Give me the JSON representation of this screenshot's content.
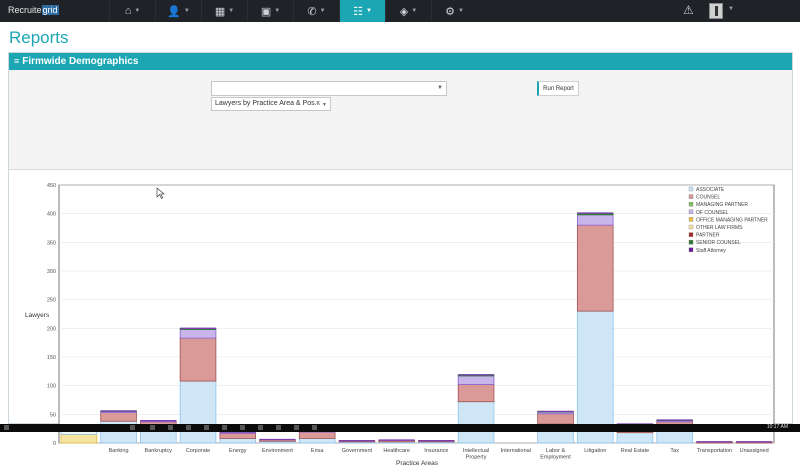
{
  "app": {
    "brand_prefix": "Recruite",
    "brand_highlight": "grid"
  },
  "nav": {
    "items": [
      {
        "name": "home-nav",
        "icon": "⌂"
      },
      {
        "name": "people-nav",
        "icon": "👤"
      },
      {
        "name": "buildings-nav",
        "icon": "▦"
      },
      {
        "name": "briefcase-nav",
        "icon": "▣"
      },
      {
        "name": "phone-nav",
        "icon": "✆"
      },
      {
        "name": "reports-nav",
        "icon": "☷"
      },
      {
        "name": "tags-nav",
        "icon": "◈"
      },
      {
        "name": "settings-nav",
        "icon": "⚙"
      }
    ],
    "active_index": 5
  },
  "page": {
    "title": "Reports"
  },
  "panel": {
    "title": "Firmwide Demographics"
  },
  "filters": {
    "select1_value": "",
    "select2_value": "Lawyers by Practice Area & Pos...",
    "clear_glyph": "×",
    "run_label": "Run Report"
  },
  "taskbar": {
    "clock": "10:17 AM"
  },
  "colors": {
    "accent": "#1ca6b4",
    "navbar": "#1f2226"
  },
  "chart_data": {
    "type": "bar",
    "stacked": true,
    "title": "",
    "xlabel": "Practice Areas",
    "ylabel": "Lawyers",
    "ylim": [
      0,
      450
    ],
    "yticks": [
      0,
      50,
      100,
      150,
      200,
      250,
      300,
      350,
      400,
      450
    ],
    "grid": true,
    "legend_position": "top-right",
    "categories": [
      "",
      "Banking",
      "Bankruptcy",
      "Corporate",
      "Energy",
      "Environment",
      "Erisa",
      "Government",
      "Healthcare",
      "Insurance",
      "Intellectual Property",
      "International",
      "Labor & Employment",
      "Litigation",
      "Real Estate",
      "Tax",
      "Transportation",
      "Unassigned"
    ],
    "series": [
      {
        "name": "ASSOCIATE",
        "color": "#cfe6f7",
        "values": [
          0,
          38,
          25,
          108,
          8,
          3,
          8,
          2,
          2,
          2,
          72,
          0,
          33,
          230,
          18,
          20,
          0,
          0
        ]
      },
      {
        "name": "COUNSEL",
        "color": "#d99a98",
        "values": [
          0,
          15,
          12,
          75,
          9,
          3,
          11,
          2,
          3,
          2,
          30,
          0,
          18,
          150,
          12,
          17,
          2,
          2
        ]
      },
      {
        "name": "MANAGING PARTNER",
        "color": "#7fbf5f",
        "values": [
          0,
          0,
          0,
          0,
          0,
          0,
          0,
          0,
          0,
          0,
          0,
          0,
          0,
          0,
          0,
          0,
          0,
          0
        ]
      },
      {
        "name": "OF COUNSEL",
        "color": "#c8b6ea",
        "values": [
          0,
          2,
          2,
          15,
          2,
          0,
          2,
          0,
          0,
          0,
          15,
          0,
          3,
          18,
          3,
          2,
          0,
          0
        ]
      },
      {
        "name": "OFFICE MANAGING PARTNER",
        "color": "#f0c040",
        "values": [
          0,
          0,
          0,
          0,
          0,
          0,
          0,
          0,
          0,
          0,
          0,
          0,
          0,
          0,
          0,
          0,
          0,
          0
        ]
      },
      {
        "name": "OTHER LAW FIRMS",
        "color": "#f7e3a0",
        "values": [
          15,
          0,
          0,
          0,
          0,
          0,
          0,
          0,
          0,
          0,
          0,
          0,
          0,
          0,
          0,
          0,
          0,
          0
        ]
      },
      {
        "name": "PARTNER",
        "color": "#a52a2a",
        "values": [
          0,
          0,
          0,
          0,
          0,
          0,
          0,
          0,
          0,
          0,
          0,
          0,
          0,
          0,
          0,
          0,
          0,
          0
        ]
      },
      {
        "name": "SENIOR COUNSEL",
        "color": "#2e7d32",
        "values": [
          0,
          1,
          0,
          2,
          0,
          0,
          0,
          0,
          0,
          0,
          2,
          0,
          1,
          3,
          0,
          1,
          0,
          0
        ]
      },
      {
        "name": "Staff Attorney",
        "color": "#6a1b9a",
        "values": [
          0,
          0,
          0,
          0,
          0,
          0,
          0,
          0,
          0,
          0,
          0,
          0,
          0,
          0,
          0,
          0,
          0,
          0
        ]
      }
    ],
    "misc_top": [
      12,
      0,
      0,
      0,
      0,
      0,
      0,
      0,
      0,
      0,
      0,
      0,
      0,
      0,
      0,
      0,
      0,
      0
    ]
  }
}
